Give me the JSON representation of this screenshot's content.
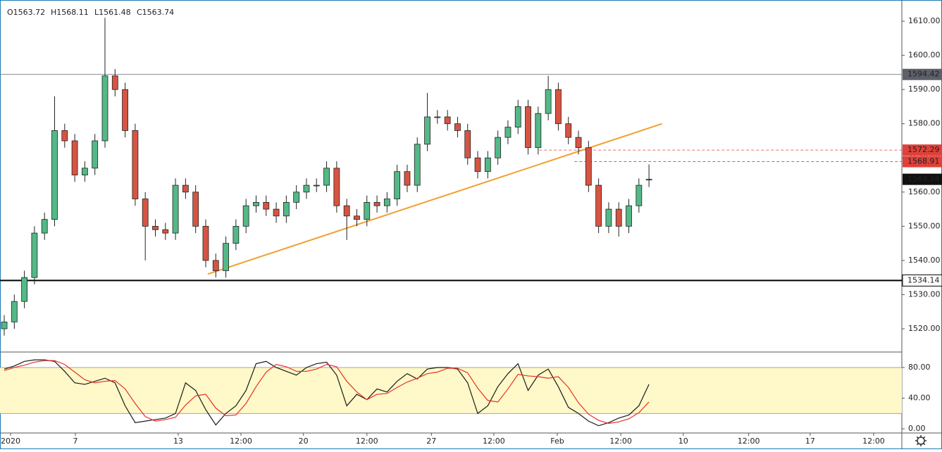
{
  "chart_data": {
    "type": "candlestick",
    "ohlc_header": [
      "O1563.72",
      "H1568.11",
      "L1561.48",
      "C1563.74"
    ],
    "up_color": "#53b987",
    "down_color": "#d75442",
    "open": [
      1520,
      1522,
      1528,
      1535,
      1548,
      1552,
      1578,
      1575,
      1565,
      1567,
      1575,
      1594,
      1590,
      1578,
      1558,
      1550,
      1549,
      1548,
      1562,
      1560,
      1550,
      1540,
      1537,
      1545,
      1550,
      1556,
      1557,
      1555,
      1553,
      1557,
      1560,
      1562,
      1562,
      1567,
      1556,
      1553,
      1552,
      1557,
      1556,
      1558,
      1566,
      1562,
      1574,
      1582,
      1582,
      1580,
      1578,
      1570,
      1566,
      1570,
      1576,
      1579,
      1585,
      1573,
      1583,
      1590,
      1580,
      1576,
      1573,
      1562,
      1550,
      1555,
      1550,
      1556,
      1563.72
    ],
    "high": [
      1524,
      1530,
      1537,
      1550,
      1554,
      1588,
      1580,
      1577,
      1569,
      1577,
      1611,
      1596,
      1592,
      1580,
      1560,
      1552,
      1551,
      1564,
      1564,
      1562,
      1552,
      1542,
      1547,
      1552,
      1558,
      1559,
      1559,
      1557,
      1559,
      1562,
      1564,
      1564,
      1569,
      1569,
      1558,
      1555,
      1559,
      1559,
      1560,
      1568,
      1568,
      1576,
      1589,
      1584,
      1584,
      1582,
      1580,
      1572,
      1572,
      1578,
      1581,
      1587,
      1587,
      1585,
      1594,
      1592,
      1582,
      1578,
      1575,
      1564,
      1557,
      1557,
      1558,
      1564,
      1568.11
    ],
    "low": [
      1518,
      1520,
      1526,
      1533,
      1546,
      1550,
      1573,
      1563,
      1563,
      1565,
      1573,
      1588,
      1576,
      1556,
      1540,
      1547,
      1546,
      1546,
      1558,
      1548,
      1538,
      1535,
      1535,
      1543,
      1548,
      1554,
      1553,
      1551,
      1551,
      1555,
      1558,
      1560,
      1560,
      1554,
      1546,
      1550,
      1550,
      1554,
      1554,
      1556,
      1560,
      1560,
      1572,
      1580,
      1578,
      1576,
      1568,
      1564,
      1564,
      1568,
      1574,
      1577,
      1571,
      1571,
      1581,
      1578,
      1574,
      1571,
      1560,
      1548,
      1548,
      1547,
      1548,
      1554,
      1561.48
    ],
    "close": [
      1522,
      1528,
      1535,
      1548,
      1552,
      1578,
      1575,
      1565,
      1567,
      1575,
      1594,
      1590,
      1578,
      1558,
      1550,
      1549,
      1548,
      1562,
      1560,
      1550,
      1540,
      1537,
      1545,
      1550,
      1556,
      1557,
      1555,
      1553,
      1557,
      1560,
      1562,
      1562,
      1567,
      1556,
      1553,
      1552,
      1557,
      1556,
      1558,
      1566,
      1562,
      1574,
      1582,
      1582,
      1580,
      1578,
      1570,
      1566,
      1570,
      1576,
      1579,
      1585,
      1573,
      1583,
      1590,
      1580,
      1576,
      1573,
      1562,
      1550,
      1555,
      1550,
      1556,
      1562,
      1563.74
    ],
    "xlim": [
      -0.42,
      89.1
    ],
    "xticks": [
      {
        "value": 0.63,
        "label": "2020"
      },
      {
        "value": 7.06,
        "label": "7"
      },
      {
        "value": 17.27,
        "label": "13"
      },
      {
        "value": 23.5,
        "label": "12:00"
      },
      {
        "value": 29.7,
        "label": "20"
      },
      {
        "value": 36.0,
        "label": "12:00"
      },
      {
        "value": 42.4,
        "label": "27"
      },
      {
        "value": 48.6,
        "label": "12:00"
      },
      {
        "value": 54.9,
        "label": "Feb"
      },
      {
        "value": 61.2,
        "label": "12:00"
      },
      {
        "value": 67.4,
        "label": "10"
      },
      {
        "value": 73.9,
        "label": "12:00"
      },
      {
        "value": 80.0,
        "label": "17"
      },
      {
        "value": 86.3,
        "label": "12:00"
      }
    ],
    "ylim": [
      1513.2,
      1616.2
    ],
    "yticks": [
      {
        "value": 1520,
        "label": "1520.00"
      },
      {
        "value": 1530,
        "label": "1530.00"
      },
      {
        "value": 1540,
        "label": "1540.00"
      },
      {
        "value": 1550,
        "label": "1550.00"
      },
      {
        "value": 1560,
        "label": "1560.00"
      },
      {
        "value": 1570,
        "label": "1570.00"
      },
      {
        "value": 1580,
        "label": "1580.00"
      },
      {
        "value": 1590,
        "label": "1590.00"
      },
      {
        "value": 1600,
        "label": "1600.00"
      },
      {
        "value": 1610,
        "label": "1610.00"
      }
    ],
    "levels": [
      {
        "value": 1594.42,
        "color": "#5d606b",
        "start": -0.42,
        "style": "solid"
      },
      {
        "value": 1534.14,
        "color": "#000000",
        "start": -0.42,
        "style": "thick"
      },
      {
        "value": 1572.29,
        "color": "#e0413a",
        "start": 53.1,
        "style": "dashed"
      },
      {
        "value": 1568.91,
        "color": "#e0413a",
        "start": 56.6,
        "style": "dashed"
      }
    ],
    "trendline": {
      "color": "#f0a030",
      "x": [
        20.2,
        65.3
      ],
      "y": [
        1536,
        1580
      ]
    },
    "stochastic": {
      "ylim": [
        -5.5,
        100.2
      ],
      "yticks": [
        {
          "value": 0,
          "label": "0.00"
        },
        {
          "value": 40,
          "label": "40.00"
        },
        {
          "value": 80,
          "label": "80.00"
        }
      ],
      "band": [
        20,
        80
      ],
      "band_color": "#fff8c8",
      "series": [
        {
          "color": "#1a1a1a",
          "values": [
            78,
            82,
            88,
            90,
            90,
            88,
            75,
            60,
            58,
            62,
            66,
            60,
            30,
            8,
            10,
            12,
            14,
            20,
            60,
            50,
            25,
            5,
            20,
            30,
            50,
            85,
            88,
            80,
            75,
            70,
            80,
            85,
            87,
            70,
            30,
            45,
            38,
            52,
            48,
            62,
            72,
            65,
            78,
            80,
            80,
            78,
            60,
            20,
            30,
            55,
            72,
            85,
            50,
            70,
            78,
            55,
            28,
            20,
            10,
            4,
            8,
            14,
            18,
            30,
            58
          ]
        },
        {
          "color": "#e8302a",
          "values": [
            76,
            80,
            83,
            87,
            89,
            89,
            84,
            74,
            64,
            60,
            62,
            63,
            52,
            33,
            16,
            10,
            12,
            15,
            31,
            43,
            45,
            27,
            17,
            18,
            33,
            55,
            74,
            84,
            81,
            75,
            75,
            78,
            84,
            81,
            62,
            48,
            38,
            45,
            46,
            54,
            61,
            66,
            72,
            74,
            79,
            79,
            73,
            53,
            37,
            35,
            52,
            71,
            69,
            68,
            66,
            68,
            54,
            34,
            19,
            11,
            7,
            9,
            13,
            21,
            35
          ]
        }
      ]
    }
  }
}
